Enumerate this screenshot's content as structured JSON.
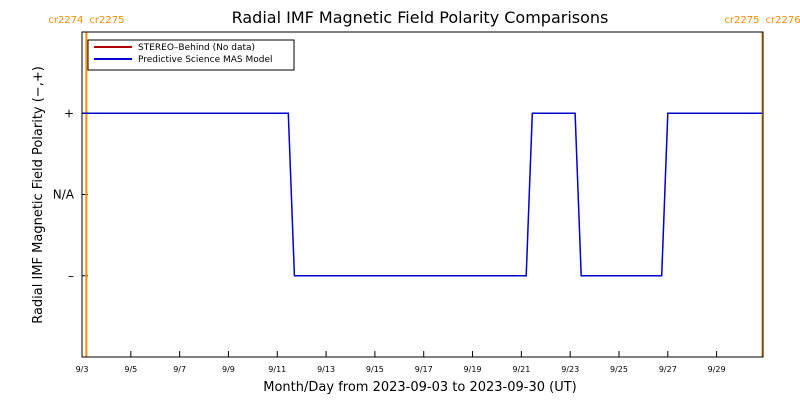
{
  "chart_data": {
    "type": "line",
    "title": "Radial IMF Magnetic Field Polarity Comparisons",
    "xlabel": "Month/Day from 2023-09-03 to 2023-09-30 (UT)",
    "ylabel": "Radial IMF Magnetic Field Polarity (−,+)",
    "x_range_days": [
      3,
      30.9
    ],
    "y_range": [
      -2,
      2
    ],
    "x_ticks": [
      {
        "day": 3,
        "label": "9/3"
      },
      {
        "day": 5,
        "label": "9/5"
      },
      {
        "day": 7,
        "label": "9/7"
      },
      {
        "day": 9,
        "label": "9/9"
      },
      {
        "day": 11,
        "label": "9/11"
      },
      {
        "day": 13,
        "label": "9/13"
      },
      {
        "day": 15,
        "label": "9/15"
      },
      {
        "day": 17,
        "label": "9/17"
      },
      {
        "day": 19,
        "label": "9/19"
      },
      {
        "day": 21,
        "label": "9/21"
      },
      {
        "day": 23,
        "label": "9/23"
      },
      {
        "day": 25,
        "label": "9/25"
      },
      {
        "day": 27,
        "label": "9/27"
      },
      {
        "day": 29,
        "label": "9/29"
      }
    ],
    "y_ticks": [
      {
        "value": 1,
        "label": "+"
      },
      {
        "value": 0,
        "label": "N/A"
      },
      {
        "value": -1,
        "label": "–"
      }
    ],
    "legend": {
      "placement": "top-left",
      "entries": [
        {
          "name": "STEREO–Behind (No data)",
          "color": "#b00000"
        },
        {
          "name": "Predictive Science MAS Model",
          "color": "#0000cc"
        }
      ]
    },
    "series": [
      {
        "name": "Predictive Science MAS Model",
        "color": "#0000cc",
        "points": [
          [
            3.0,
            1
          ],
          [
            11.45,
            1
          ],
          [
            11.7,
            -1
          ],
          [
            21.2,
            -1
          ],
          [
            21.45,
            1
          ],
          [
            23.2,
            1
          ],
          [
            23.45,
            -1
          ],
          [
            26.75,
            -1
          ],
          [
            27.0,
            1
          ],
          [
            30.85,
            1
          ]
        ]
      }
    ],
    "carrington_markers": [
      {
        "day": 3.18,
        "left_label": "cr2274",
        "right_label": "cr2275",
        "color": "#ff8c00"
      },
      {
        "day": 30.88,
        "left_label": "cr2275",
        "right_label": "cr2276",
        "color": "#ff8c00"
      }
    ]
  }
}
